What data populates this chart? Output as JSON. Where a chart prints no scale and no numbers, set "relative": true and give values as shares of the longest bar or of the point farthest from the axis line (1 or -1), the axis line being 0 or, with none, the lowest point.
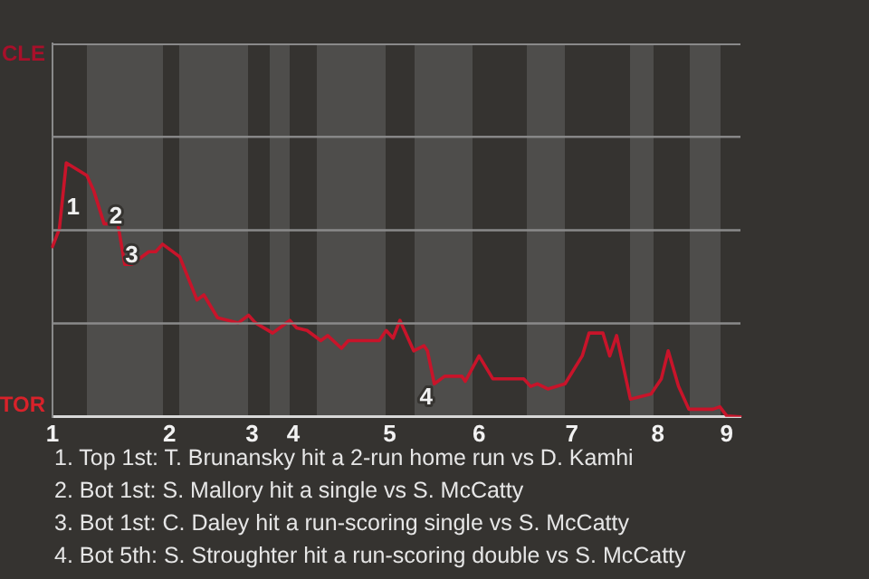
{
  "chart_data": {
    "type": "line",
    "categories": [
      "1",
      null,
      null,
      null,
      null,
      null,
      null,
      null,
      null,
      null,
      null,
      null,
      null,
      null,
      null,
      null,
      null,
      null,
      null,
      null,
      null,
      null,
      null,
      null,
      null,
      null,
      null,
      null,
      null,
      null,
      null,
      null,
      null,
      null,
      "2",
      null,
      null,
      null,
      null,
      null,
      null,
      null,
      null,
      null,
      null,
      null,
      null,
      null,
      null,
      null,
      null,
      null,
      null,
      null,
      null,
      null,
      null,
      null,
      "3",
      null,
      null,
      null,
      null,
      null,
      null,
      null,
      null,
      null,
      null,
      null,
      "4",
      null,
      null,
      null,
      null,
      null,
      null,
      null,
      null,
      null,
      null,
      null,
      null,
      null,
      null,
      null,
      null,
      null,
      null,
      null,
      null,
      null,
      null,
      null,
      null,
      null,
      null,
      null,
      "5",
      null,
      null,
      null,
      null,
      null,
      null,
      null,
      null,
      null,
      null,
      null,
      null,
      null,
      null,
      null,
      null,
      null,
      null,
      null,
      null,
      null,
      null,
      null,
      null,
      null,
      "6",
      null,
      null,
      null,
      null,
      null,
      null,
      null,
      null,
      null,
      null,
      null,
      null,
      null,
      null,
      null,
      null,
      null,
      null,
      null,
      null,
      null,
      null,
      null,
      null,
      null,
      null,
      "7",
      null,
      null,
      null,
      null,
      null,
      null,
      null,
      null,
      null,
      null,
      null,
      null,
      null,
      null,
      null,
      null,
      null,
      null,
      null,
      null,
      null,
      null,
      null,
      null,
      "8",
      null,
      null,
      null,
      null,
      null,
      null,
      null,
      null,
      null,
      null,
      null,
      null,
      null,
      null,
      null,
      null,
      null,
      null,
      null,
      "9",
      null,
      null,
      null,
      null
    ],
    "series": [
      {
        "color": "#c8142a",
        "values": [
          0.67,
          null,
          0.74,
          null,
          1,
          null,
          null,
          null,
          null,
          null,
          0.95,
          null,
          0.89,
          null,
          null,
          0.76,
          null,
          null,
          null,
          0.76,
          null,
          0.6,
          null,
          0.6,
          null,
          null,
          null,
          null,
          0.65,
          null,
          0.65,
          null,
          0.68,
          null,
          null,
          null,
          null,
          0.63,
          null,
          null,
          null,
          null,
          0.46,
          null,
          0.48,
          null,
          null,
          null,
          0.39,
          null,
          null,
          null,
          null,
          null,
          0.37,
          null,
          null,
          0.4,
          null,
          0.37,
          null,
          null,
          null,
          null,
          0.33,
          null,
          null,
          0.36,
          null,
          0.38,
          null,
          0.35,
          null,
          null,
          0.34,
          null,
          null,
          null,
          0.3,
          null,
          0.32,
          null,
          null,
          null,
          0.27,
          null,
          0.3,
          null,
          null,
          null,
          null,
          null,
          null,
          null,
          null,
          0.3,
          null,
          0.34,
          null,
          0.31,
          null,
          0.38,
          null,
          null,
          null,
          0.26,
          null,
          null,
          0.28,
          0.26,
          null,
          0.13,
          null,
          null,
          0.16,
          null,
          null,
          null,
          null,
          0.16,
          0.14,
          null,
          null,
          null,
          0.24,
          null,
          null,
          null,
          0.15,
          null,
          null,
          null,
          null,
          null,
          null,
          null,
          null,
          0.15,
          null,
          0.12,
          null,
          0.13,
          null,
          null,
          0.11,
          null,
          null,
          null,
          null,
          0.13,
          null,
          null,
          null,
          null,
          0.24,
          null,
          0.33,
          null,
          null,
          null,
          0.33,
          null,
          0.24,
          null,
          0.32,
          null,
          null,
          null,
          0.07,
          null,
          null,
          null,
          null,
          null,
          0.09,
          null,
          null,
          0.15,
          null,
          0.26,
          null,
          null,
          0.12,
          null,
          null,
          0.03,
          null,
          null,
          null,
          null,
          null,
          null,
          0.03,
          null,
          0.04,
          null,
          0.004,
          null,
          null,
          null,
          0
        ]
      }
    ],
    "relative": true,
    "ref_lines": [
      {
        "axis": "y",
        "value": 0.3675,
        "color": "#8a8a8a"
      },
      {
        "axis": "y",
        "value": 0.735,
        "color": "#8a8a8a"
      },
      {
        "axis": "y",
        "value": 1.1025,
        "color": "#8a8a8a"
      }
    ],
    "annotations": [
      "CLE",
      "TOR",
      "1",
      "2",
      "3",
      "4",
      "1. Top 1st: T. Brunansky hit a 2-run home run vs D. Kamhi",
      "2. Bot 1st: S. Mallory hit a single vs S. McCatty",
      "3. Bot 1st: C. Daley hit a run-scoring single vs S. McCatty",
      "4. Bot 5th: S. Stroughter hit a run-scoring double vs S. McCatty"
    ]
  }
}
